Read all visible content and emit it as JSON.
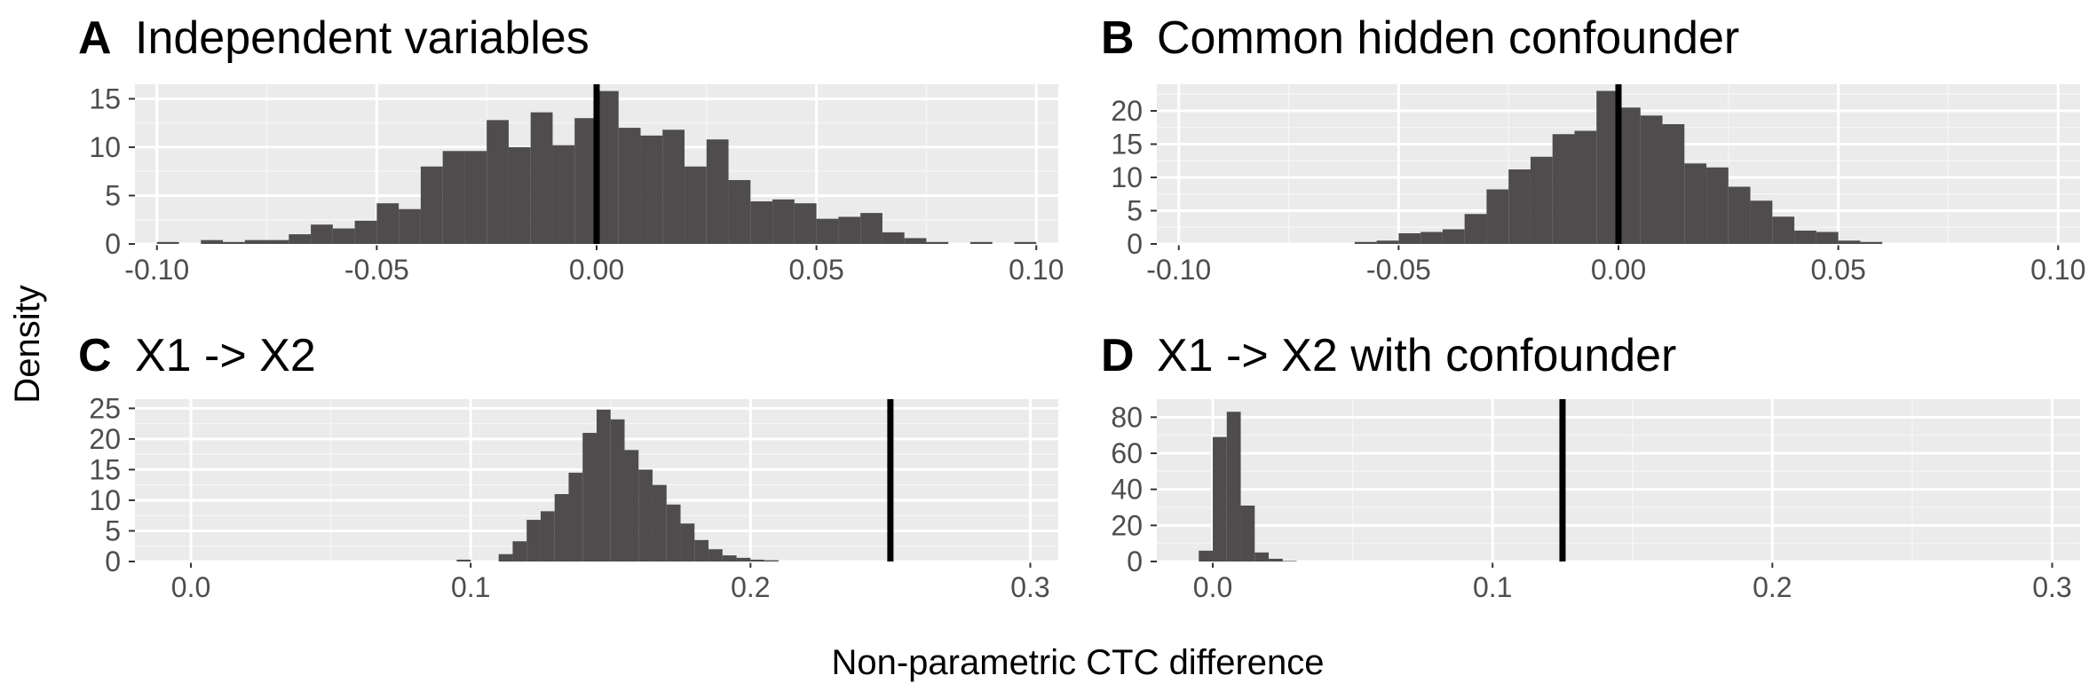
{
  "colors": {
    "panel_background": "#ebebeb",
    "grid_major": "#ffffff",
    "grid_minor": "#f5f5f5",
    "bar_fill": "#4f4c4d",
    "reference_line": "#000000",
    "tick_text": "#4d4d4d",
    "title_text": "#000000"
  },
  "axes": {
    "ylabel": "Density",
    "xlabel": "Non-parametric CTC difference"
  },
  "chart_data": [
    {
      "type": "bar",
      "letter": "A",
      "title": "Independent variables",
      "bin_width": 0.005,
      "xlim": [
        -0.105,
        0.105
      ],
      "ylim": [
        0,
        16.5
      ],
      "xticks": [
        -0.1,
        -0.05,
        0.0,
        0.05,
        0.1
      ],
      "xtick_labels": [
        "-0.10",
        "-0.05",
        "0.00",
        "0.05",
        "0.10"
      ],
      "yticks": [
        0,
        5,
        10,
        15
      ],
      "ytick_labels": [
        "0",
        "5",
        "10",
        "15"
      ],
      "reference_line": 0.0,
      "bin_centers": [
        -0.0975,
        -0.0925,
        -0.0875,
        -0.0825,
        -0.0775,
        -0.0725,
        -0.0675,
        -0.0625,
        -0.0575,
        -0.0525,
        -0.0475,
        -0.0425,
        -0.0375,
        -0.0325,
        -0.0275,
        -0.0225,
        -0.0175,
        -0.0125,
        -0.0075,
        -0.0025,
        0.0025,
        0.0075,
        0.0125,
        0.0175,
        0.0225,
        0.0275,
        0.0325,
        0.0375,
        0.0425,
        0.0475,
        0.0525,
        0.0575,
        0.0625,
        0.0675,
        0.0725,
        0.0775,
        0.0825,
        0.0875,
        0.0925,
        0.0975
      ],
      "values": [
        0.2,
        0,
        0.4,
        0.2,
        0.4,
        0.4,
        1.0,
        2.0,
        1.6,
        2.4,
        4.2,
        3.6,
        8.0,
        9.6,
        9.6,
        12.8,
        10.0,
        13.6,
        10.2,
        13.0,
        15.8,
        12.0,
        11.2,
        11.8,
        8.0,
        10.8,
        6.6,
        4.4,
        4.6,
        4.2,
        2.6,
        2.8,
        3.2,
        1.2,
        0.6,
        0.2,
        0,
        0.2,
        0,
        0.2
      ]
    },
    {
      "type": "bar",
      "letter": "B",
      "title": "Common hidden confounder",
      "bin_width": 0.005,
      "xlim": [
        -0.105,
        0.105
      ],
      "ylim": [
        0,
        24
      ],
      "xticks": [
        -0.1,
        -0.05,
        0.0,
        0.05,
        0.1
      ],
      "xtick_labels": [
        "-0.10",
        "-0.05",
        "0.00",
        "0.05",
        "0.10"
      ],
      "yticks": [
        0,
        5,
        10,
        15,
        20
      ],
      "ytick_labels": [
        "0",
        "5",
        "10",
        "15",
        "20"
      ],
      "reference_line": 0.0,
      "bin_centers": [
        -0.0575,
        -0.0525,
        -0.0475,
        -0.0425,
        -0.0375,
        -0.0325,
        -0.0275,
        -0.0225,
        -0.0175,
        -0.0125,
        -0.0075,
        -0.0025,
        0.0025,
        0.0075,
        0.0125,
        0.0175,
        0.0225,
        0.0275,
        0.0325,
        0.0375,
        0.0425,
        0.0475,
        0.0525,
        0.0575
      ],
      "values": [
        0.3,
        0.5,
        1.6,
        1.8,
        2.2,
        4.5,
        8.2,
        11.2,
        13.1,
        16.5,
        17.0,
        23.0,
        20.5,
        19.3,
        18.0,
        12.1,
        11.5,
        8.6,
        6.5,
        4.1,
        2.0,
        1.8,
        0.5,
        0.3
      ]
    },
    {
      "type": "bar",
      "letter": "C",
      "title": "X1 -> X2",
      "bin_width": 0.005,
      "xlim": [
        -0.02,
        0.31
      ],
      "ylim": [
        0,
        26.5
      ],
      "xticks": [
        0.0,
        0.1,
        0.2,
        0.3
      ],
      "xtick_labels": [
        "0.0",
        "0.1",
        "0.2",
        "0.3"
      ],
      "yticks": [
        0,
        5,
        10,
        15,
        20,
        25
      ],
      "ytick_labels": [
        "0",
        "5",
        "10",
        "15",
        "20",
        "25"
      ],
      "reference_line": 0.25,
      "bin_centers": [
        0.0975,
        0.1025,
        0.1075,
        0.1125,
        0.1175,
        0.1225,
        0.1275,
        0.1325,
        0.1375,
        0.1425,
        0.1475,
        0.1525,
        0.1575,
        0.1625,
        0.1675,
        0.1725,
        0.1775,
        0.1825,
        0.1875,
        0.1925,
        0.1975,
        0.2025,
        0.2075
      ],
      "values": [
        0.3,
        0,
        0,
        1.2,
        3.3,
        6.8,
        8.2,
        11.0,
        14.5,
        21.0,
        24.8,
        23.2,
        18.2,
        15.0,
        12.5,
        9.3,
        6.2,
        3.5,
        2.0,
        1.0,
        0.6,
        0.3,
        0.2
      ]
    },
    {
      "type": "bar",
      "letter": "D",
      "title": "X1 -> X2 with confounder",
      "bin_width": 0.005,
      "xlim": [
        -0.02,
        0.31
      ],
      "ylim": [
        0,
        90
      ],
      "xticks": [
        0.0,
        0.1,
        0.2,
        0.3
      ],
      "xtick_labels": [
        "0.0",
        "0.1",
        "0.2",
        "0.3"
      ],
      "yticks": [
        0,
        20,
        40,
        60,
        80
      ],
      "ytick_labels": [
        "0",
        "20",
        "40",
        "60",
        "80"
      ],
      "reference_line": 0.125,
      "bin_centers": [
        -0.0025,
        0.0025,
        0.0075,
        0.0125,
        0.0175,
        0.0225,
        0.0275
      ],
      "values": [
        6.0,
        69.0,
        83.0,
        31.0,
        5.0,
        1.5,
        0.3
      ]
    }
  ]
}
